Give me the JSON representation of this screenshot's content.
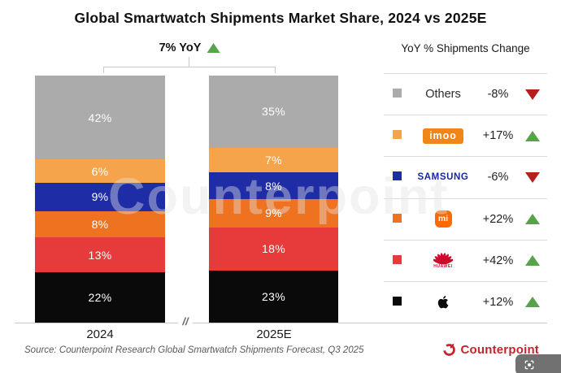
{
  "title": "Global Smartwatch Shipments Market Share, 2024 vs 2025E",
  "watermark": "Counterpoint",
  "axis_break": "//",
  "legend_header": "YoY % Shipments Change",
  "source": "Source: Counterpoint Research Global Smartwatch Shipments Forecast, Q3 2025",
  "brand": "Counterpoint",
  "colors": {
    "trend_up": "#57A349",
    "trend_down": "#B5201F",
    "axis": "#C9C9C9",
    "separator": "#DCDCDC",
    "counterpoint_red": "#C4242E",
    "samsung_wordmark": "#1428A0",
    "imoo_chip": "#F08519",
    "mi_logo": "#FF6900",
    "huawei_logo": "#CF0A2C"
  },
  "chart_data": {
    "type": "bar",
    "stacked": true,
    "unit": "%",
    "ylim": [
      0,
      100
    ],
    "grid": false,
    "legend_position": "right",
    "title": "Global Smartwatch Shipments Market Share, 2024 vs 2025E",
    "categories": [
      "2024",
      "2025E"
    ],
    "total_yoy_label": "7% YoY",
    "total_yoy_direction": "up",
    "series": [
      {
        "name": "Apple",
        "values": [
          22,
          23
        ],
        "color": "#0A0A0A",
        "yoy_change": "+12%",
        "trend": "up",
        "logo": "apple"
      },
      {
        "name": "Huawei",
        "values": [
          13,
          18
        ],
        "color": "#E73B3B",
        "yoy_change": "+42%",
        "trend": "up",
        "logo": "huawei"
      },
      {
        "name": "Xiaomi",
        "values": [
          8,
          9
        ],
        "color": "#EE7220",
        "yoy_change": "+22%",
        "trend": "up",
        "logo": "mi"
      },
      {
        "name": "Samsung",
        "values": [
          9,
          8
        ],
        "color": "#1E2CA6",
        "yoy_change": "-6%",
        "trend": "down",
        "logo": "samsung"
      },
      {
        "name": "imoo",
        "values": [
          6,
          7
        ],
        "color": "#F6A44B",
        "yoy_change": "+17%",
        "trend": "up",
        "logo": "imoo"
      },
      {
        "name": "Others",
        "values": [
          42,
          35
        ],
        "color": "#ABABAB",
        "yoy_change": "-8%",
        "trend": "down",
        "logo": "text"
      }
    ]
  }
}
